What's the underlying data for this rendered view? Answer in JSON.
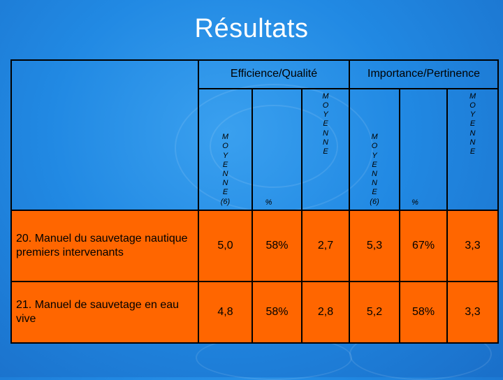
{
  "title": "Résultats",
  "header": {
    "group1": "Efficience/Qualité",
    "group2": "Importance/Pertinence",
    "sub": {
      "moyenne6": "M\nO\nY\nE\nN\nN\nE\n(6)",
      "percent": "%",
      "moyenne": "M\nO\nY\nE\nN\nN\nE"
    }
  },
  "rows": [
    {
      "label": "20. Manuel du sauvetage nautique premiers intervenants",
      "values": [
        "5,0",
        "58%",
        "2,7",
        "5,3",
        "67%",
        "3,3"
      ]
    },
    {
      "label": "21. Manuel de sauvetage en eau vive",
      "values": [
        "4,8",
        "58%",
        "2,8",
        "5,2",
        "58%",
        "3,3"
      ]
    }
  ],
  "colors": {
    "background": "#2189e3",
    "row_fill": "#ff6600",
    "title": "#ffffff"
  }
}
